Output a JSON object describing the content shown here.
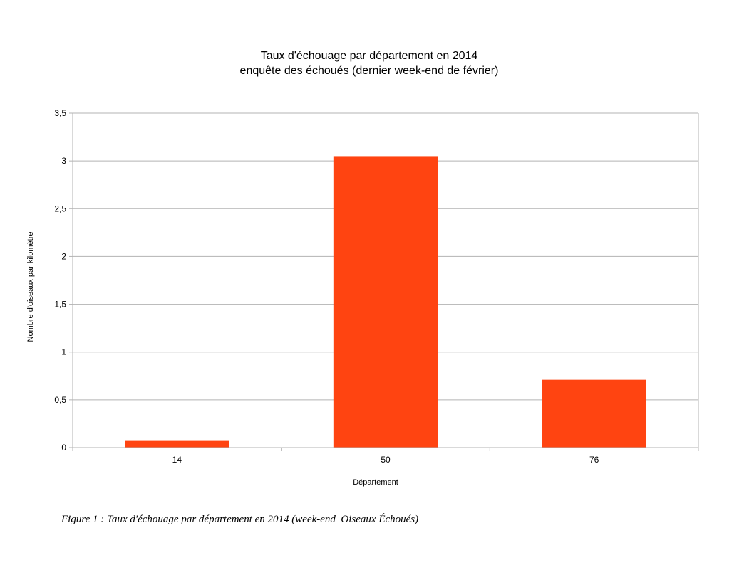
{
  "chart_data": {
    "type": "bar",
    "title": [
      "Taux d'échouage par département en 2014",
      "enquête des échoués (dernier week-end de février)"
    ],
    "xlabel": "Département",
    "ylabel": "Nombre d'oiseaux par kilomètre",
    "categories": [
      "14",
      "50",
      "76"
    ],
    "values": [
      0.07,
      3.05,
      0.71
    ],
    "ylim": [
      0,
      3.5
    ],
    "yticks": [
      0,
      0.5,
      1,
      1.5,
      2,
      2.5,
      3,
      3.5
    ],
    "ytick_labels": [
      "0",
      "0,5",
      "1",
      "1,5",
      "2",
      "2,5",
      "3",
      "3,5"
    ],
    "grid": true,
    "legend": "none",
    "bar_color": "#ff4411"
  },
  "caption": "Figure 1 : Taux d'échouage par département en 2014 (week-end  Oiseaux Échoués)"
}
